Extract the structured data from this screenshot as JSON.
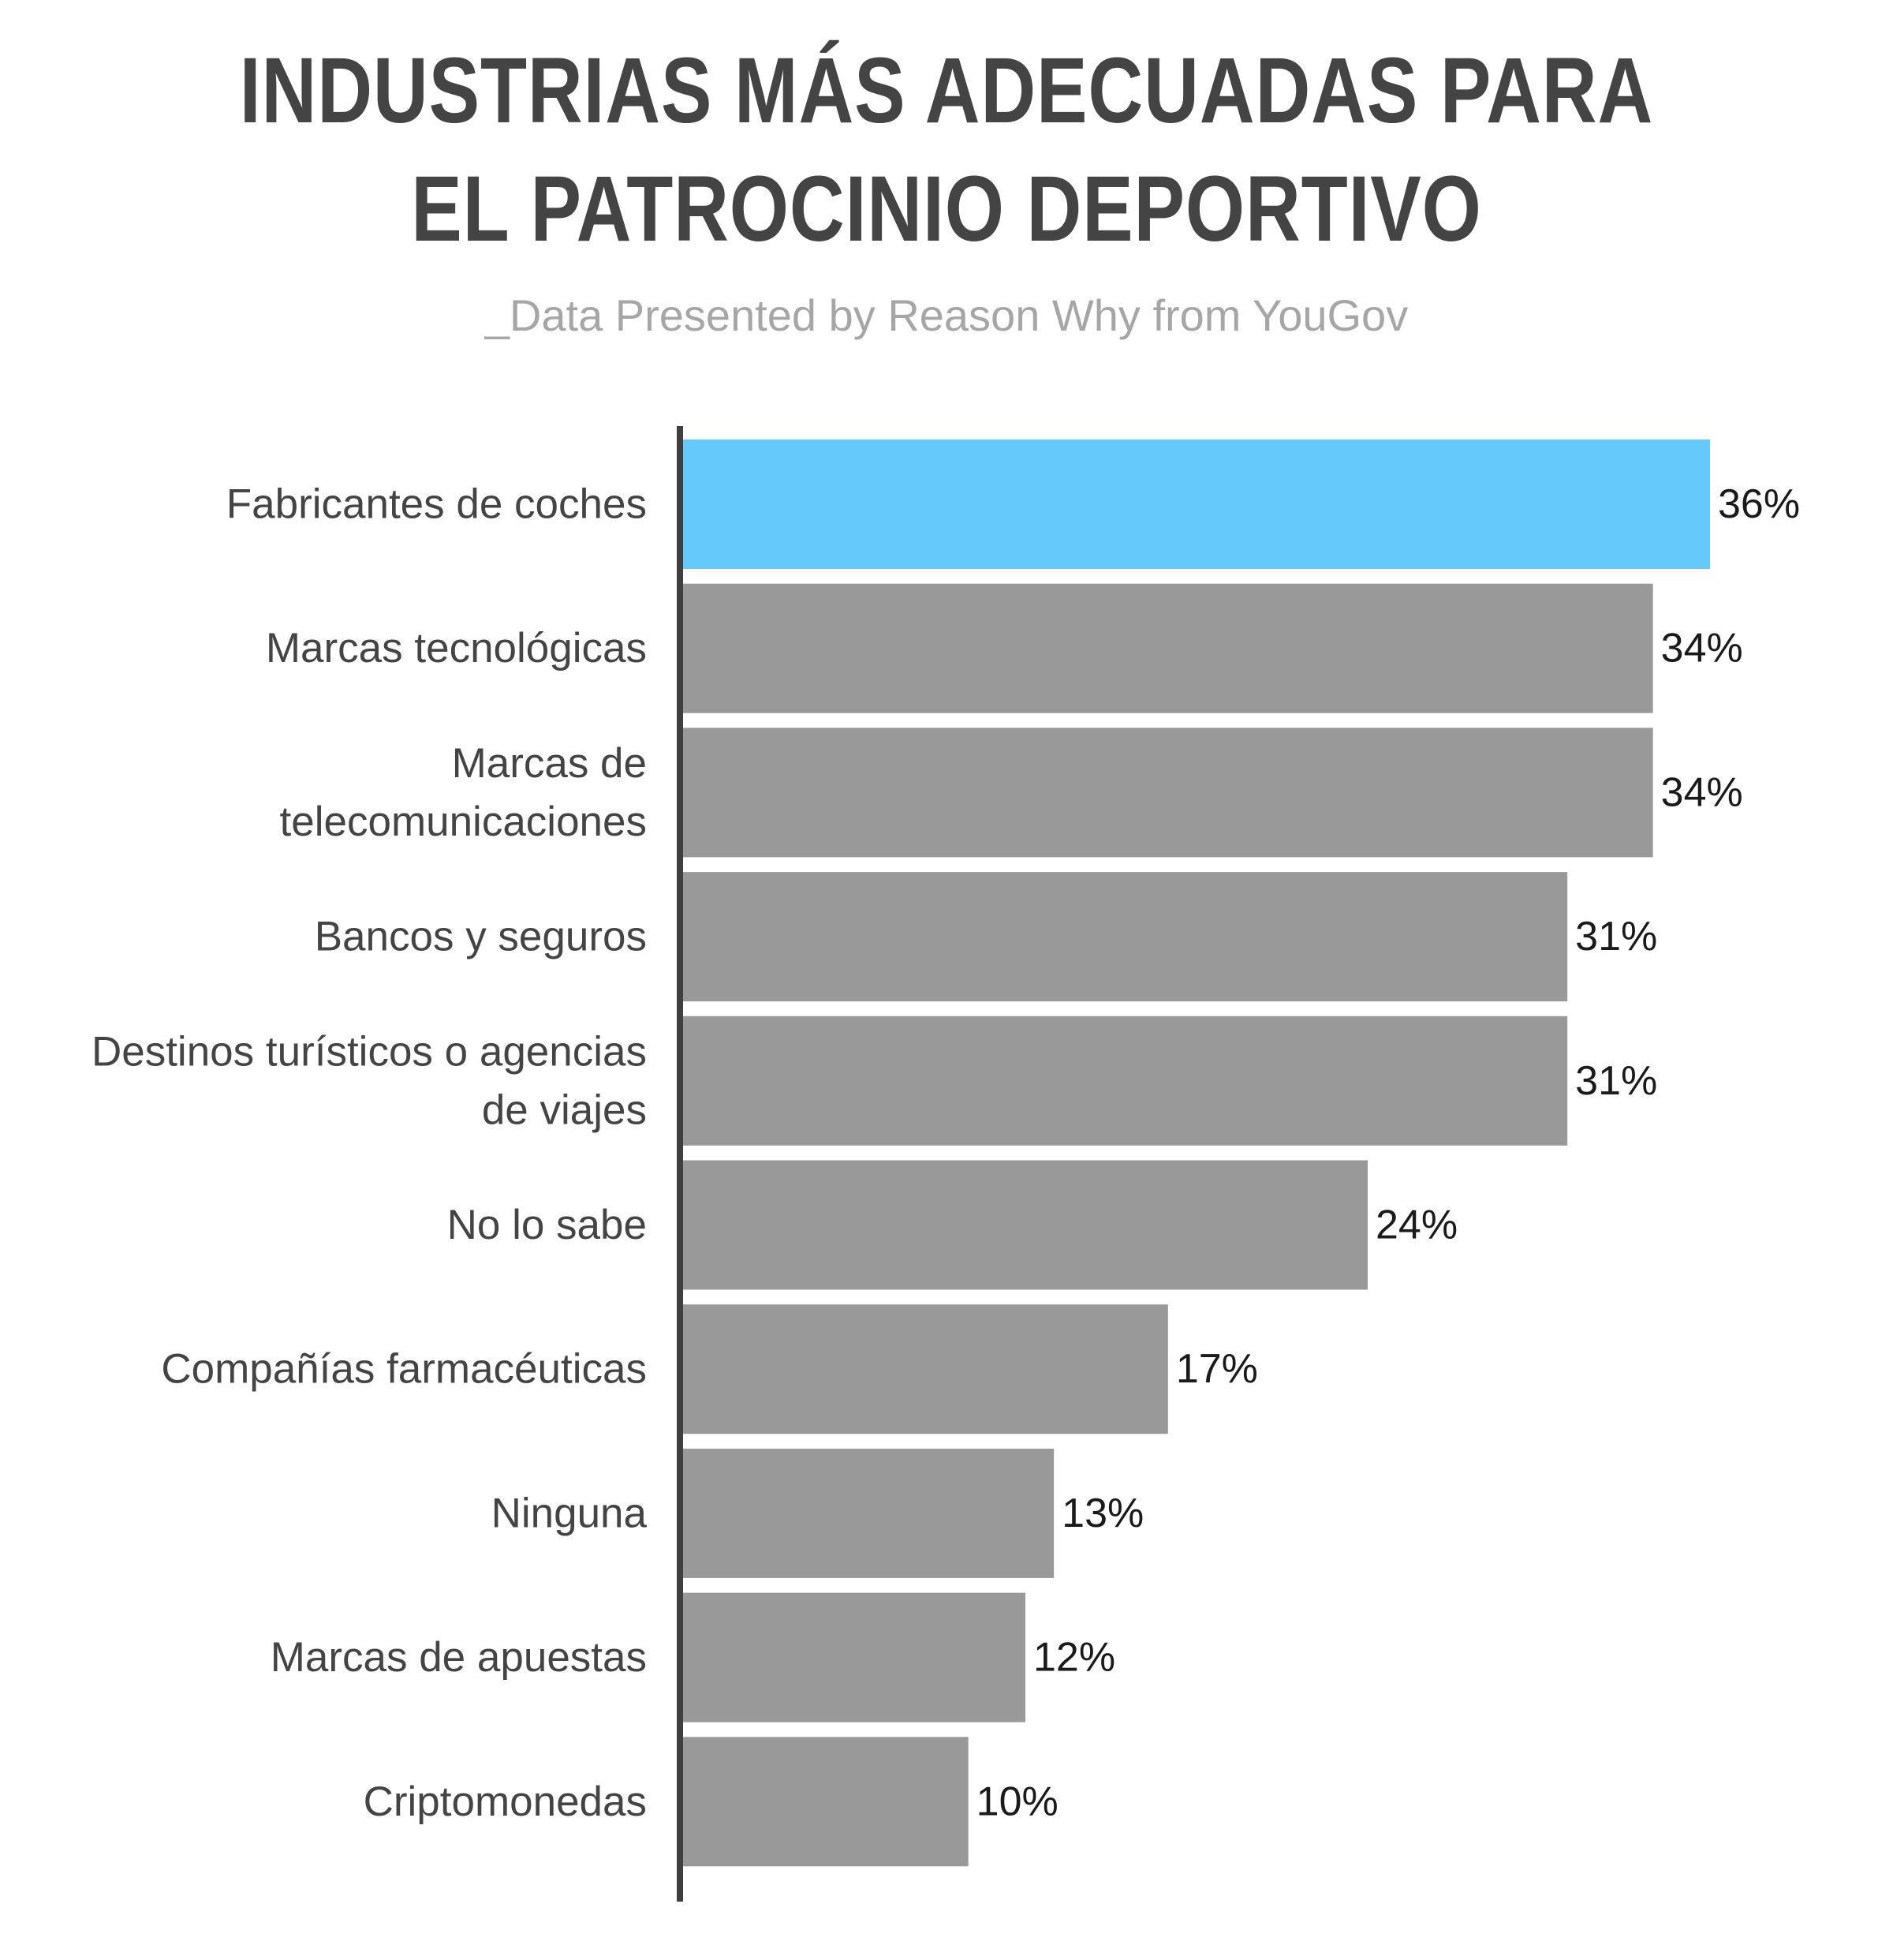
{
  "chart_data": {
    "type": "bar",
    "orientation": "horizontal",
    "title": [
      "INDUSTRIAS MÁS ADECUADAS PARA",
      "EL PATROCINIO DEPORTIVO"
    ],
    "subtitle": "_Data Presented by Reason Why from YouGov",
    "categories": [
      [
        "Fabricantes de coches"
      ],
      [
        "Marcas tecnológicas"
      ],
      [
        "Marcas de",
        "telecomunicaciones"
      ],
      [
        "Bancos y seguros"
      ],
      [
        "Destinos turísticos o agencias",
        "de viajes"
      ],
      [
        "No lo sabe"
      ],
      [
        "Compañías farmacéuticas"
      ],
      [
        "Ninguna"
      ],
      [
        "Marcas de apuestas"
      ],
      [
        "Criptomonedas"
      ]
    ],
    "values": [
      36,
      34,
      34,
      31,
      31,
      24,
      17,
      13,
      12,
      10
    ],
    "value_labels": [
      "36%",
      "34%",
      "34%",
      "31%",
      "31%",
      "24%",
      "17%",
      "13%",
      "12%",
      "10%"
    ],
    "highlight_index": 0,
    "colors": {
      "highlight": "#66c9fc",
      "default": "#999999",
      "axis": "#404040",
      "title": "#444444",
      "subtitle": "#a6a6a6"
    },
    "xlim": [
      0,
      36
    ],
    "grid": false,
    "legend": "none"
  }
}
